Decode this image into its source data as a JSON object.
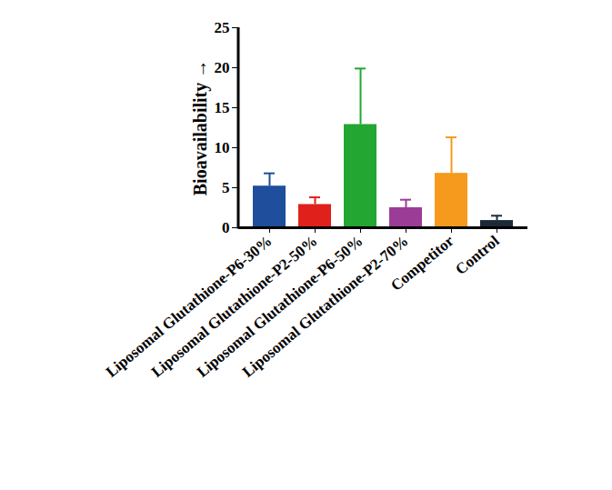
{
  "chart_data": {
    "type": "bar",
    "y_label": "Bioavailability",
    "categories": [
      "Liposomal Glutathione-P6-30%",
      "Liposomal Glutathione-P2-50%",
      "Liposomal Glutathione-P6-50%",
      "Liposomal Glutathione-P2-70%",
      "Competitor",
      "Control"
    ],
    "values": [
      5.2,
      2.9,
      12.9,
      2.5,
      6.8,
      0.9
    ],
    "errors": [
      1.6,
      0.9,
      7.0,
      1.0,
      4.5,
      0.6
    ],
    "colors": [
      "#1f4e9c",
      "#e0201b",
      "#23a632",
      "#9b3d96",
      "#f59a1d",
      "#1c2a38"
    ],
    "ylim": [
      0,
      25
    ],
    "yticks": [
      0,
      5,
      10,
      15,
      20,
      25
    ],
    "grid": false
  }
}
